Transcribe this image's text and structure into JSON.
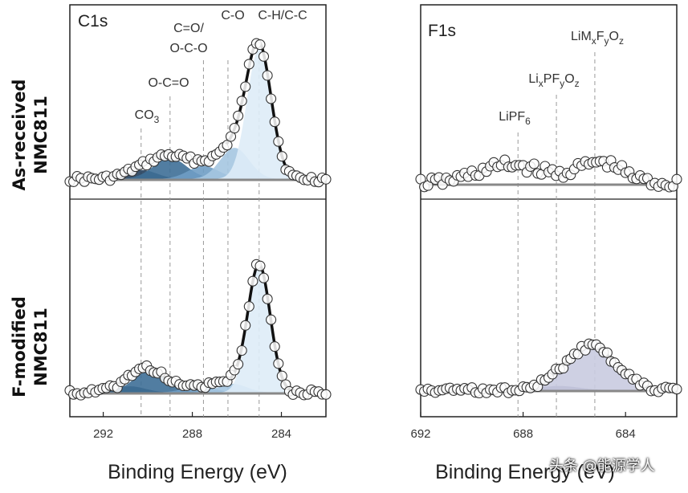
{
  "row_labels": {
    "top": [
      "As-received",
      "NMC811"
    ],
    "bottom": [
      "F-modified",
      "NMC811"
    ]
  },
  "watermark": "头条 @能源学人",
  "chart_data": [
    {
      "type": "line",
      "panel_label": "C1s",
      "xlabel": "Binding Energy (eV)",
      "xlim": [
        293.5,
        282.0
      ],
      "x_reversed": true,
      "ticks": [
        292,
        288,
        284
      ],
      "reference_lines": [
        290.3,
        289.0,
        287.5,
        286.4,
        285.0
      ],
      "peak_labels": [
        {
          "lines": [
            "CO",
            "3"
          ],
          "format": "sub"
        },
        {
          "lines": [
            "O-C=O"
          ]
        },
        {
          "lines": [
            "C=O/",
            "O-C-O"
          ]
        },
        {
          "lines": [
            "C-O"
          ]
        },
        {
          "lines": [
            "C-H/C-C"
          ]
        }
      ],
      "series": [
        {
          "name": "As-received NMC811",
          "components": [
            {
              "center": 290.3,
              "height": 0.07,
              "width": 0.7,
              "color": "#243f5c"
            },
            {
              "center": 289.0,
              "height": 0.16,
              "width": 0.75,
              "color": "#3e6f97"
            },
            {
              "center": 287.5,
              "height": 0.1,
              "width": 0.7,
              "color": "#6f9dc4"
            },
            {
              "center": 286.1,
              "height": 0.24,
              "width": 0.65,
              "color": "#a5c6e1"
            },
            {
              "center": 285.0,
              "height": 1.0,
              "width": 0.55,
              "color": "#deecf7"
            }
          ]
        },
        {
          "name": "F-modified NMC811",
          "components": [
            {
              "center": 290.8,
              "height": 0.05,
              "width": 0.7,
              "color": "#243f5c"
            },
            {
              "center": 289.9,
              "height": 0.17,
              "width": 0.75,
              "color": "#3e6f97"
            },
            {
              "center": 287.7,
              "height": 0.05,
              "width": 0.7,
              "color": "#6f9dc4"
            },
            {
              "center": 286.2,
              "height": 0.07,
              "width": 0.65,
              "color": "#a5c6e1"
            },
            {
              "center": 285.0,
              "height": 1.0,
              "width": 0.5,
              "color": "#deecf7"
            }
          ]
        }
      ]
    },
    {
      "type": "line",
      "panel_label": "F1s",
      "xlabel": "Binding Energy (eV)",
      "xlim": [
        692.0,
        682.0
      ],
      "x_reversed": true,
      "ticks": [
        692,
        688,
        684
      ],
      "reference_lines": [
        688.2,
        686.7,
        685.2
      ],
      "peak_labels": [
        {
          "text": "LiPF",
          "sub": "6"
        },
        {
          "text": "Li",
          "sub": "x",
          "text2": "PF",
          "sub2": "y",
          "text3": "O",
          "sub3": "z"
        },
        {
          "text": "LiM",
          "sub": "x",
          "text2": "F",
          "sub2": "y",
          "text3": "O",
          "sub3": "z"
        }
      ],
      "series": [
        {
          "name": "As-received NMC811",
          "components": [],
          "noisy_points": [
            {
              "center": 688.5,
              "height": 0.09,
              "width": 1.3
            },
            {
              "center": 685.0,
              "height": 0.1,
              "width": 0.9
            }
          ]
        },
        {
          "name": "F-modified NMC811",
          "components": [
            {
              "center": 686.6,
              "height": 0.04,
              "width": 0.8,
              "color": "#5f5f8f"
            },
            {
              "center": 685.3,
              "height": 0.4,
              "width": 0.95,
              "color": "#c9cbe0"
            }
          ]
        }
      ]
    }
  ]
}
